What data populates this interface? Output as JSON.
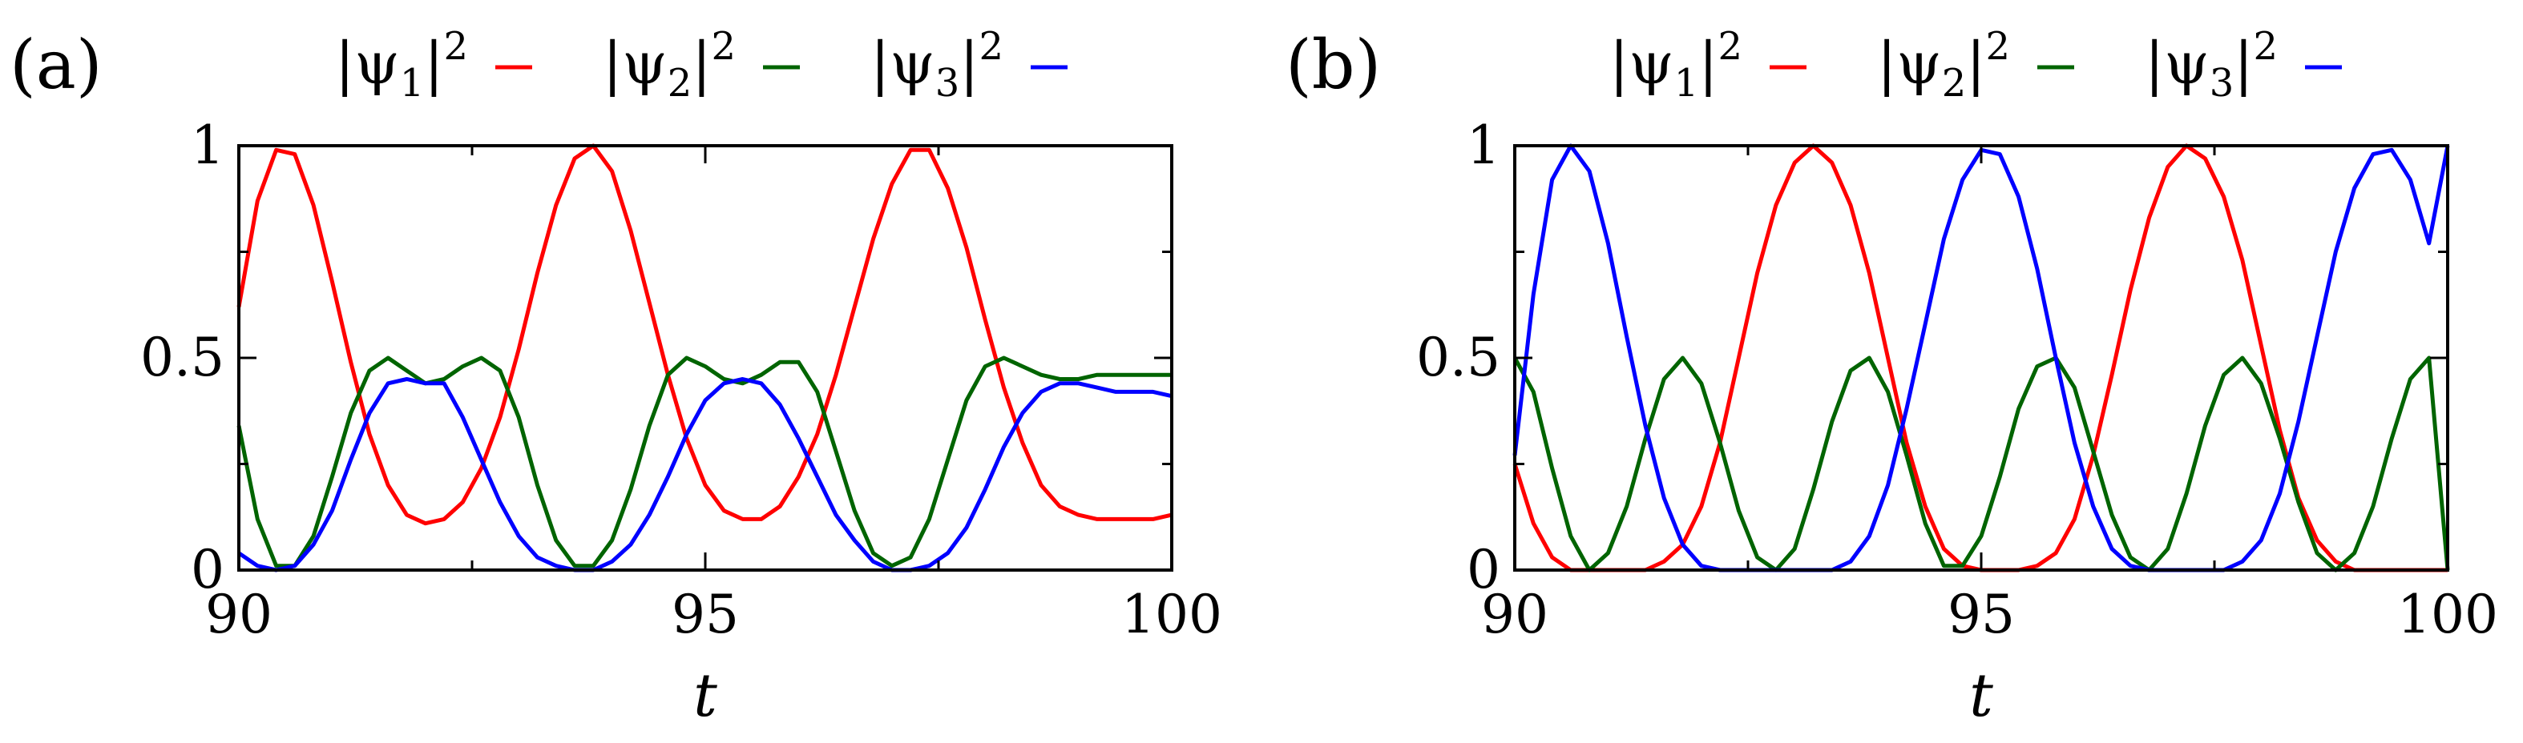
{
  "chart_data": [
    {
      "type": "line",
      "panel_label": "(a)",
      "xlabel": "t",
      "ylabel": "",
      "xlim": [
        90,
        100
      ],
      "ylim": [
        0,
        1
      ],
      "x_ticks": [
        "90",
        "95",
        "100"
      ],
      "y_ticks": [
        "0",
        "0.5",
        "1"
      ],
      "legend_placement": "top",
      "x": [
        90.0,
        90.2,
        90.4,
        90.6,
        90.8,
        91.0,
        91.2,
        91.4,
        91.6,
        91.8,
        92.0,
        92.2,
        92.4,
        92.6,
        92.8,
        93.0,
        93.2,
        93.4,
        93.6,
        93.8,
        94.0,
        94.2,
        94.4,
        94.6,
        94.8,
        95.0,
        95.2,
        95.4,
        95.6,
        95.8,
        96.0,
        96.2,
        96.4,
        96.6,
        96.8,
        97.0,
        97.2,
        97.4,
        97.6,
        97.8,
        98.0,
        98.2,
        98.4,
        98.6,
        98.8,
        99.0,
        99.2,
        99.4,
        99.6,
        99.8,
        100.0
      ],
      "series": [
        {
          "name": "|ψ1|²",
          "color": "#ff0000",
          "values": [
            0.62,
            0.87,
            0.99,
            0.98,
            0.86,
            0.68,
            0.49,
            0.32,
            0.2,
            0.13,
            0.11,
            0.12,
            0.16,
            0.24,
            0.36,
            0.52,
            0.7,
            0.86,
            0.97,
            1.0,
            0.94,
            0.8,
            0.63,
            0.46,
            0.31,
            0.2,
            0.14,
            0.12,
            0.12,
            0.15,
            0.22,
            0.32,
            0.46,
            0.62,
            0.78,
            0.91,
            0.99,
            0.99,
            0.9,
            0.76,
            0.59,
            0.43,
            0.3,
            0.2,
            0.15,
            0.13,
            0.12,
            0.12,
            0.12,
            0.12,
            0.13
          ]
        },
        {
          "name": "|ψ2|²",
          "color": "#006400",
          "values": [
            0.34,
            0.12,
            0.01,
            0.01,
            0.08,
            0.22,
            0.37,
            0.47,
            0.5,
            0.47,
            0.44,
            0.45,
            0.48,
            0.5,
            0.47,
            0.36,
            0.2,
            0.07,
            0.01,
            0.01,
            0.07,
            0.19,
            0.34,
            0.46,
            0.5,
            0.48,
            0.45,
            0.44,
            0.46,
            0.49,
            0.49,
            0.42,
            0.28,
            0.14,
            0.04,
            0.01,
            0.03,
            0.12,
            0.26,
            0.4,
            0.48,
            0.5,
            0.48,
            0.46,
            0.45,
            0.45,
            0.46,
            0.46,
            0.46,
            0.46,
            0.46
          ]
        },
        {
          "name": "|ψ3|²",
          "color": "#0000ff",
          "values": [
            0.04,
            0.01,
            0.0,
            0.01,
            0.06,
            0.14,
            0.26,
            0.37,
            0.44,
            0.45,
            0.44,
            0.44,
            0.36,
            0.26,
            0.16,
            0.08,
            0.03,
            0.01,
            0.0,
            0.0,
            0.02,
            0.06,
            0.13,
            0.22,
            0.32,
            0.4,
            0.44,
            0.45,
            0.44,
            0.39,
            0.31,
            0.22,
            0.13,
            0.07,
            0.02,
            0.0,
            0.0,
            0.01,
            0.04,
            0.1,
            0.19,
            0.29,
            0.37,
            0.42,
            0.44,
            0.44,
            0.43,
            0.42,
            0.42,
            0.42,
            0.41
          ]
        }
      ]
    },
    {
      "type": "line",
      "panel_label": "(b)",
      "xlabel": "t",
      "ylabel": "",
      "xlim": [
        90,
        100
      ],
      "ylim": [
        0,
        1
      ],
      "x_ticks": [
        "90",
        "95",
        "100"
      ],
      "y_ticks": [
        "0",
        "0.5",
        "1"
      ],
      "legend_placement": "top",
      "x": [
        90.0,
        90.2,
        90.4,
        90.6,
        90.8,
        91.0,
        91.2,
        91.4,
        91.6,
        91.8,
        92.0,
        92.2,
        92.4,
        92.6,
        92.8,
        93.0,
        93.2,
        93.4,
        93.6,
        93.8,
        94.0,
        94.2,
        94.4,
        94.6,
        94.8,
        95.0,
        95.2,
        95.4,
        95.6,
        95.8,
        96.0,
        96.2,
        96.4,
        96.6,
        96.8,
        97.0,
        97.2,
        97.4,
        97.6,
        97.8,
        98.0,
        98.2,
        98.4,
        98.6,
        98.8,
        99.0,
        99.2,
        99.4,
        99.6,
        99.8,
        100.0
      ],
      "series": [
        {
          "name": "|ψ1|²",
          "color": "#ff0000",
          "values": [
            0.25,
            0.11,
            0.03,
            0.0,
            0.0,
            0.0,
            0.0,
            0.0,
            0.02,
            0.06,
            0.15,
            0.3,
            0.5,
            0.7,
            0.86,
            0.96,
            1.0,
            0.96,
            0.86,
            0.7,
            0.5,
            0.3,
            0.15,
            0.05,
            0.01,
            0.0,
            0.0,
            0.0,
            0.01,
            0.04,
            0.12,
            0.27,
            0.46,
            0.66,
            0.83,
            0.95,
            1.0,
            0.97,
            0.88,
            0.73,
            0.53,
            0.33,
            0.17,
            0.07,
            0.02,
            0.0,
            0.0,
            0.0,
            0.0,
            0.0,
            0.0
          ]
        },
        {
          "name": "|ψ2|²",
          "color": "#006400",
          "values": [
            0.5,
            0.42,
            0.24,
            0.08,
            0.0,
            0.04,
            0.15,
            0.31,
            0.45,
            0.5,
            0.44,
            0.3,
            0.14,
            0.03,
            0.0,
            0.05,
            0.19,
            0.35,
            0.47,
            0.5,
            0.42,
            0.27,
            0.11,
            0.01,
            0.01,
            0.08,
            0.22,
            0.38,
            0.48,
            0.5,
            0.43,
            0.28,
            0.13,
            0.03,
            0.0,
            0.05,
            0.18,
            0.34,
            0.46,
            0.5,
            0.44,
            0.31,
            0.16,
            0.04,
            0.0,
            0.04,
            0.15,
            0.31,
            0.45,
            0.5,
            0.0
          ]
        },
        {
          "name": "|ψ3|²",
          "color": "#0000ff",
          "values": [
            0.27,
            0.65,
            0.92,
            1.0,
            0.94,
            0.77,
            0.55,
            0.34,
            0.17,
            0.06,
            0.01,
            0.0,
            0.0,
            0.0,
            0.0,
            0.0,
            0.0,
            0.0,
            0.02,
            0.08,
            0.2,
            0.38,
            0.58,
            0.78,
            0.92,
            0.99,
            0.98,
            0.88,
            0.71,
            0.5,
            0.3,
            0.15,
            0.05,
            0.01,
            0.0,
            0.0,
            0.0,
            0.0,
            0.0,
            0.02,
            0.07,
            0.18,
            0.35,
            0.55,
            0.75,
            0.9,
            0.98,
            0.99,
            0.92,
            0.77,
            1.0
          ]
        }
      ]
    }
  ],
  "panels": [
    {
      "label": "(a)",
      "legend": [
        {
          "base": "|ψ",
          "sub": "1",
          "sup": "|²"
        },
        {
          "base": "|ψ",
          "sub": "2",
          "sup": "|²"
        },
        {
          "base": "|ψ",
          "sub": "3",
          "sup": "|²"
        }
      ]
    },
    {
      "label": "(b)",
      "legend": [
        {
          "base": "|ψ",
          "sub": "1",
          "sup": "|²"
        },
        {
          "base": "|ψ",
          "sub": "2",
          "sup": "|²"
        },
        {
          "base": "|ψ",
          "sub": "3",
          "sup": "|²"
        }
      ]
    }
  ]
}
